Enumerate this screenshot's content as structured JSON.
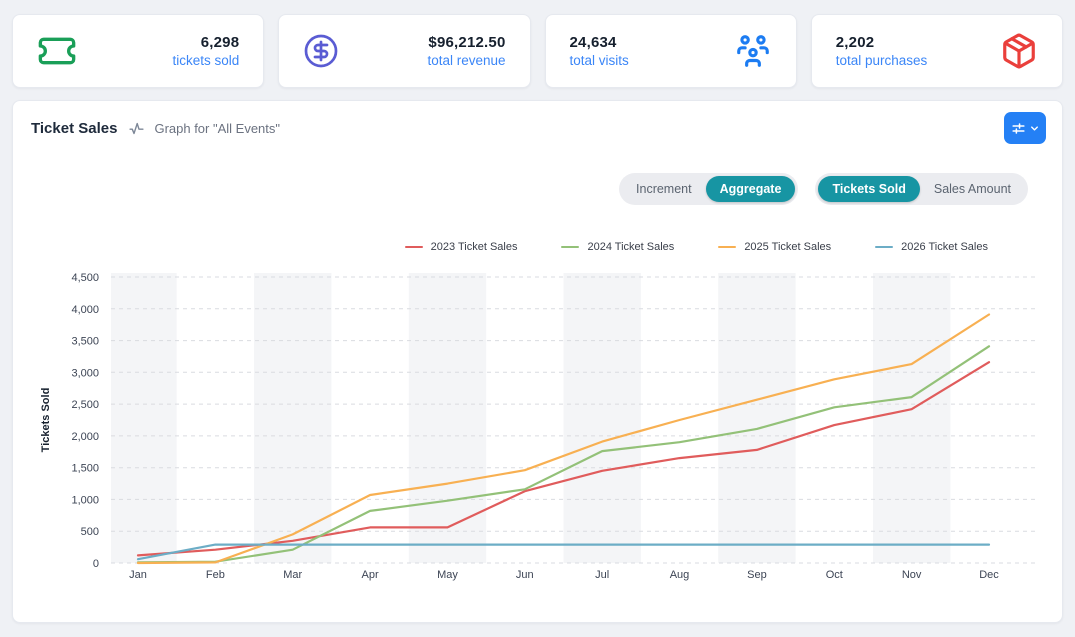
{
  "stat_cards": [
    {
      "value": "6,298",
      "label": "tickets sold",
      "icon": "ticket-icon",
      "icon_color": "#1a9f58",
      "icon_position": "left"
    },
    {
      "value": "$96,212.50",
      "label": "total revenue",
      "icon": "dollar-circle-icon",
      "icon_color": "#5a5cd3",
      "icon_position": "left"
    },
    {
      "value": "24,634",
      "label": "total visits",
      "icon": "users-group-icon",
      "icon_color": "#1c7cf2",
      "icon_position": "right"
    },
    {
      "value": "2,202",
      "label": "total purchases",
      "icon": "package-icon",
      "icon_color": "#ea3f3b",
      "icon_position": "right"
    }
  ],
  "panel": {
    "title": "Ticket Sales",
    "subtitle": "Graph for \"All Events\"",
    "filter_button": {
      "icons": [
        "sliders-icon",
        "chevron-down-icon"
      ],
      "color": "#2480f5"
    },
    "toggles": {
      "active_color": "#1795a3",
      "mode": {
        "options": [
          "Increment",
          "Aggregate"
        ],
        "active": "Aggregate"
      },
      "metric": {
        "options": [
          "Tickets Sold",
          "Sales Amount"
        ],
        "active": "Tickets Sold"
      }
    }
  },
  "chart_data": {
    "type": "line",
    "x": [
      "Jan",
      "Feb",
      "Mar",
      "Apr",
      "May",
      "Jun",
      "Jul",
      "Aug",
      "Sep",
      "Oct",
      "Nov",
      "Dec"
    ],
    "series": [
      {
        "name": "2023 Ticket Sales",
        "color": "#e05c5c",
        "values": [
          120,
          210,
          350,
          560,
          560,
          1130,
          1450,
          1650,
          1780,
          2170,
          2420,
          3160
        ]
      },
      {
        "name": "2024 Ticket Sales",
        "color": "#93c178",
        "values": [
          10,
          20,
          210,
          820,
          980,
          1160,
          1760,
          1900,
          2110,
          2450,
          2610,
          3410
        ]
      },
      {
        "name": "2025 Ticket Sales",
        "color": "#f8b052",
        "values": [
          0,
          10,
          450,
          1070,
          1250,
          1460,
          1910,
          2250,
          2570,
          2890,
          3130,
          3910
        ]
      },
      {
        "name": "2026 Ticket Sales",
        "color": "#6cadc6",
        "values": [
          60,
          290,
          290,
          290,
          290,
          290,
          290,
          290,
          290,
          290,
          290,
          290
        ]
      }
    ],
    "title": "",
    "xlabel": "",
    "ylabel": "Tickets Sold",
    "ylim": [
      0,
      4500
    ],
    "ytick_step": 500,
    "grid": "dashed-horizontal",
    "background_bands": "alternating vertical stripes per month",
    "legend_position": "top-right"
  }
}
